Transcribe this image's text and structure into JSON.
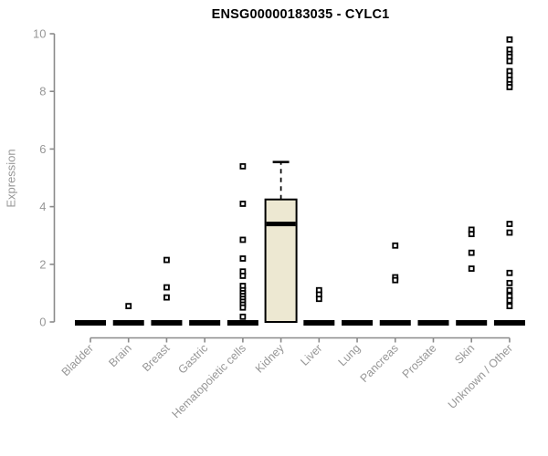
{
  "page": {
    "background": "#ffffff"
  },
  "chart_data": {
    "type": "boxplot",
    "title": "ENSG00000183035 - CYLC1",
    "ylabel": "Expression",
    "xlabel": "",
    "ylim": [
      0,
      10
    ],
    "yticks": [
      0,
      2,
      4,
      6,
      8,
      10
    ],
    "grid": false,
    "legend": "none",
    "categories": [
      "Bladder",
      "Brain",
      "Breast",
      "Gastric",
      "Hematopoietic cells",
      "Kidney",
      "Liver",
      "Lung",
      "Pancreas",
      "Prostate",
      "Skin",
      "Unknown / Other"
    ],
    "boxes": [
      {
        "category": "Bladder",
        "q1": 0,
        "median": 0,
        "q3": 0,
        "whisker_low": 0,
        "whisker_high": 0,
        "outliers": []
      },
      {
        "category": "Brain",
        "q1": 0,
        "median": 0,
        "q3": 0,
        "whisker_low": 0,
        "whisker_high": 0,
        "outliers": [
          0.55
        ]
      },
      {
        "category": "Breast",
        "q1": 0,
        "median": 0,
        "q3": 0,
        "whisker_low": 0,
        "whisker_high": 0,
        "outliers": [
          2.15,
          1.2,
          0.85
        ]
      },
      {
        "category": "Gastric",
        "q1": 0,
        "median": 0,
        "q3": 0,
        "whisker_low": 0,
        "whisker_high": 0,
        "outliers": []
      },
      {
        "category": "Hematopoietic cells",
        "q1": 0,
        "median": 0,
        "q3": 0,
        "whisker_low": 0,
        "whisker_high": 0,
        "outliers": [
          5.4,
          4.1,
          2.85,
          2.2,
          1.75,
          1.6,
          1.25,
          1.1,
          1.0,
          0.9,
          0.8,
          0.7,
          0.6,
          0.5,
          0.18
        ]
      },
      {
        "category": "Kidney",
        "q1": 0,
        "median": 3.4,
        "q3": 4.25,
        "whisker_low": 0,
        "whisker_high": 5.55,
        "outliers": []
      },
      {
        "category": "Liver",
        "q1": 0,
        "median": 0,
        "q3": 0,
        "whisker_low": 0,
        "whisker_high": 0,
        "outliers": [
          1.1,
          0.95,
          0.8
        ]
      },
      {
        "category": "Lung",
        "q1": 0,
        "median": 0,
        "q3": 0,
        "whisker_low": 0,
        "whisker_high": 0,
        "outliers": []
      },
      {
        "category": "Pancreas",
        "q1": 0,
        "median": 0,
        "q3": 0,
        "whisker_low": 0,
        "whisker_high": 0,
        "outliers": [
          2.65,
          1.55,
          1.45
        ]
      },
      {
        "category": "Prostate",
        "q1": 0,
        "median": 0,
        "q3": 0,
        "whisker_low": 0,
        "whisker_high": 0,
        "outliers": []
      },
      {
        "category": "Skin",
        "q1": 0,
        "median": 0,
        "q3": 0,
        "whisker_low": 0,
        "whisker_high": 0,
        "outliers": [
          3.2,
          3.05,
          2.4,
          1.85
        ]
      },
      {
        "category": "Unknown / Other",
        "q1": 0,
        "median": 0,
        "q3": 0,
        "whisker_low": 0,
        "whisker_high": 0,
        "outliers": [
          9.8,
          9.45,
          9.3,
          9.2,
          9.05,
          8.7,
          8.55,
          8.4,
          8.25,
          8.15,
          3.4,
          3.1,
          1.7,
          1.35,
          1.1,
          0.9,
          0.75,
          0.55
        ]
      }
    ],
    "colors": {
      "box_fill": "#EDE8D2",
      "box_stroke": "#000000",
      "median": "#000000",
      "outlier_stroke": "#000000",
      "axis": "#8a8a8a",
      "tick_label": "#979797",
      "title": "#000000",
      "background": "#ffffff"
    }
  }
}
